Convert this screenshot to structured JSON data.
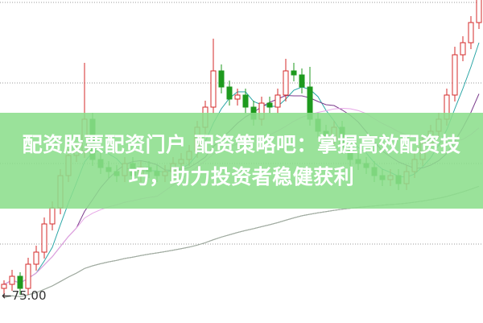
{
  "title": "配资股票配资门户 配资策略吧：掌握高效配资技巧，助力投资者稳健获利",
  "chart_data": {
    "type": "candlestick",
    "price_label": "←75.00",
    "grid": "horizontal dotted",
    "colors": {
      "up": "#d42a2a",
      "down": "#1e9a1e",
      "ma5": "#2aa6a6",
      "ma10": "#7b3b8c",
      "ma20": "#e6a6e6",
      "ma60": "#3c8f3c",
      "ma120": "#aaaaaa"
    },
    "moving_averages": [
      5,
      10,
      20,
      60,
      120
    ],
    "ylim": [
      74,
      113
    ],
    "candles": [
      [
        76.0,
        77.0,
        74.8,
        76.5
      ],
      [
        76.5,
        78.3,
        75.7,
        77.5
      ],
      [
        77.5,
        78.0,
        75.2,
        76.0
      ],
      [
        76.0,
        79.8,
        75.2,
        79.0
      ],
      [
        79.0,
        81.3,
        78.2,
        80.5
      ],
      [
        80.5,
        84.8,
        79.7,
        84.0
      ],
      [
        84.0,
        86.8,
        83.2,
        86.0
      ],
      [
        86.0,
        90.8,
        85.2,
        90.0
      ],
      [
        90.0,
        93.3,
        89.2,
        92.5
      ],
      [
        92.5,
        93.8,
        91.7,
        93.0
      ],
      [
        93.0,
        104.0,
        92.2,
        97.0
      ],
      [
        97.0,
        97.8,
        91.2,
        92.0
      ],
      [
        92.0,
        92.8,
        90.2,
        91.0
      ],
      [
        91.0,
        91.8,
        89.7,
        90.5
      ],
      [
        90.5,
        91.3,
        89.2,
        90.0
      ],
      [
        90.0,
        92.3,
        89.2,
        91.5
      ],
      [
        91.5,
        92.3,
        89.2,
        90.0
      ],
      [
        90.0,
        91.8,
        89.2,
        91.0
      ],
      [
        91.0,
        91.8,
        89.7,
        90.5
      ],
      [
        90.5,
        91.3,
        89.2,
        90.0
      ],
      [
        90.0,
        91.3,
        89.2,
        90.5
      ],
      [
        90.5,
        92.3,
        89.7,
        91.5
      ],
      [
        91.5,
        92.8,
        90.7,
        92.0
      ],
      [
        92.0,
        93.8,
        91.2,
        93.0
      ],
      [
        93.0,
        96.8,
        92.2,
        96.0
      ],
      [
        96.0,
        99.3,
        95.2,
        98.5
      ],
      [
        98.5,
        107.0,
        97.7,
        103.0
      ],
      [
        103.0,
        103.8,
        100.2,
        101.0
      ],
      [
        101.0,
        101.8,
        98.7,
        99.5
      ],
      [
        99.5,
        100.8,
        98.7,
        100.0
      ],
      [
        100.0,
        100.8,
        97.7,
        98.5
      ],
      [
        98.5,
        99.3,
        96.2,
        97.0
      ],
      [
        97.0,
        99.8,
        96.2,
        99.0
      ],
      [
        99.0,
        99.8,
        97.7,
        98.5
      ],
      [
        98.5,
        100.8,
        97.7,
        100.0
      ],
      [
        100.0,
        104.5,
        99.2,
        103.0
      ],
      [
        103.0,
        104.0,
        101.7,
        102.5
      ],
      [
        102.5,
        103.3,
        100.2,
        101.0
      ],
      [
        101.0,
        103.5,
        96.2,
        97.0
      ],
      [
        97.0,
        97.8,
        94.7,
        95.5
      ],
      [
        95.5,
        96.3,
        93.7,
        94.5
      ],
      [
        94.5,
        96.8,
        93.7,
        96.0
      ],
      [
        96.0,
        96.8,
        92.7,
        93.5
      ],
      [
        93.5,
        94.3,
        91.2,
        92.0
      ],
      [
        92.0,
        92.8,
        90.7,
        91.5
      ],
      [
        91.5,
        92.3,
        90.2,
        91.0
      ],
      [
        91.0,
        91.8,
        89.2,
        90.0
      ],
      [
        90.0,
        90.8,
        88.7,
        89.5
      ],
      [
        89.5,
        90.8,
        88.7,
        90.0
      ],
      [
        90.0,
        90.8,
        88.2,
        89.0
      ],
      [
        89.0,
        91.3,
        88.2,
        90.5
      ],
      [
        90.5,
        92.8,
        89.7,
        92.0
      ],
      [
        92.0,
        94.8,
        91.2,
        94.0
      ],
      [
        94.0,
        96.3,
        93.2,
        95.5
      ],
      [
        95.5,
        97.8,
        94.7,
        97.0
      ],
      [
        97.0,
        100.8,
        96.2,
        100.0
      ],
      [
        100.0,
        106.0,
        99.2,
        105.0
      ],
      [
        105.0,
        107.3,
        104.2,
        106.5
      ],
      [
        106.5,
        109.8,
        105.7,
        109.0
      ],
      [
        109.0,
        112.8,
        108.2,
        112.0
      ]
    ]
  }
}
